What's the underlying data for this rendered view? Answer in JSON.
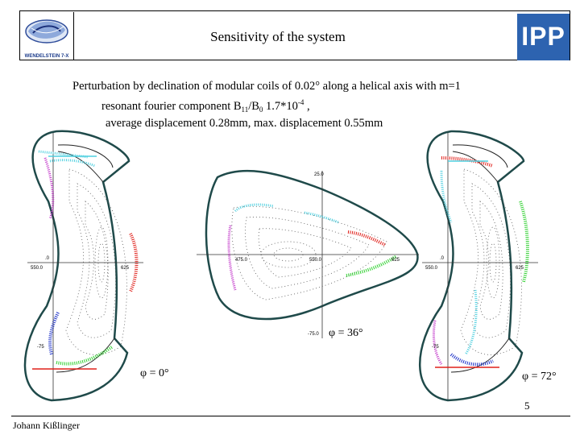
{
  "header": {
    "title": "Sensitivity of the system",
    "left_logo_caption": "WENDELSTEIN 7-X",
    "right_logo_text": "IPP"
  },
  "description": {
    "line1": "Perturbation by declination of modular coils of 0.02° along a helical axis with m=1",
    "line2_a": "resonant fourier  component B",
    "line2_sub": "11",
    "line2_b": "/B",
    "line2_sub2": "0",
    "line2_c": " 1.7*10",
    "line2_sup": "-4",
    "line2_d": " ,",
    "line3": "average displacement 0.28mm, max. displacement  0.55mm"
  },
  "plots": {
    "left": {
      "angle_label": "φ = 0°",
      "tick_x": "550.0",
      "tick_x2": "625",
      "tick_y_mid": ".0",
      "tick_y_low": "-75"
    },
    "middle": {
      "angle_label": "φ = 36°",
      "tick_y_top": "25.0",
      "tick_y_bot": "-75.0",
      "tick_x1": "475.0",
      "tick_x2": "550.0",
      "tick_x3": "625"
    },
    "right": {
      "angle_label": "φ = 72°",
      "tick_x": "550.0",
      "tick_x2": "625",
      "tick_y_mid": ".0",
      "tick_y_low": "-75"
    }
  },
  "colors": {
    "boundary": "#1f4a4a",
    "red": "#e0201a",
    "green": "#2fd02f",
    "blue": "#1a2fc8",
    "cyan": "#4fd0e0",
    "magenta": "#c030c8"
  },
  "footer": {
    "page_number": "5",
    "author": "Johann Kißlinger"
  }
}
